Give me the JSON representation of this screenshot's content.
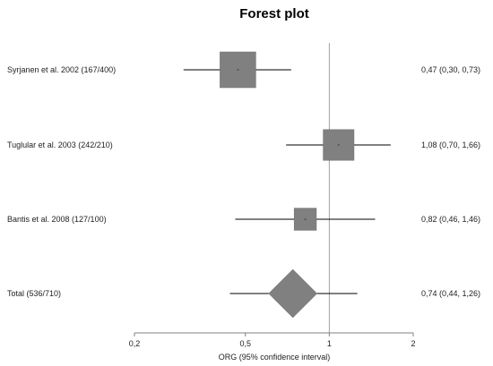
{
  "chart_data": {
    "type": "forest",
    "title": "Forest plot",
    "xlabel": "ORG (95% confidence interval)",
    "x_scale": "log",
    "xlim": [
      0.2,
      2
    ],
    "xticks": [
      {
        "value": 0.2,
        "label": "0,2"
      },
      {
        "value": 0.5,
        "label": "0,5"
      },
      {
        "value": 1,
        "label": "1"
      },
      {
        "value": 2,
        "label": "2"
      }
    ],
    "reference_line": 1,
    "studies": [
      {
        "label": "Syrjanen et al. 2002 (167/400)",
        "estimate": 0.47,
        "ci_low": 0.3,
        "ci_high": 0.73,
        "ci_text": "0,47 (0,30, 0,73)",
        "weight": 1.0
      },
      {
        "label": "Tuglular et al. 2003 (242/210)",
        "estimate": 1.08,
        "ci_low": 0.7,
        "ci_high": 1.66,
        "ci_text": "1,08 (0,70, 1,66)",
        "weight": 0.86
      },
      {
        "label": "Bantis et al. 2008 (127/100)",
        "estimate": 0.82,
        "ci_low": 0.46,
        "ci_high": 1.46,
        "ci_text": "0,82 (0,46, 1,46)",
        "weight": 0.62
      }
    ],
    "total": {
      "label": "Total (536/710)",
      "estimate": 0.74,
      "ci_low": 0.44,
      "ci_high": 1.26,
      "ci_text": "0,74 (0,44, 1,26)"
    },
    "colors": {
      "box": "#808080",
      "line": "#000000",
      "reference": "#a0a0a0",
      "axis": "#808080"
    }
  }
}
